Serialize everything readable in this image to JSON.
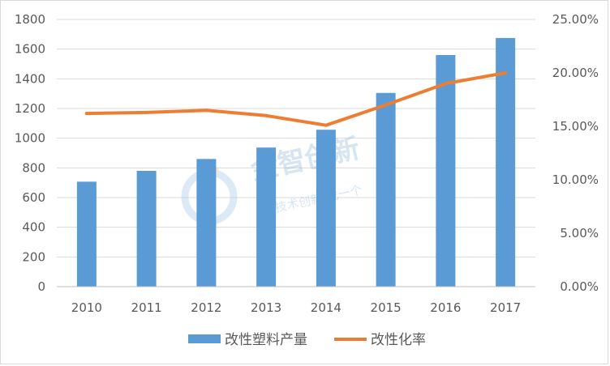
{
  "chart_data": {
    "type": "bar",
    "categories": [
      "2010",
      "2011",
      "2012",
      "2013",
      "2014",
      "2015",
      "2016",
      "2017"
    ],
    "series": [
      {
        "name": "改性塑料产量",
        "type": "bar",
        "axis": "left",
        "values": [
          707,
          780,
          860,
          937,
          1057,
          1305,
          1560,
          1675
        ]
      },
      {
        "name": "改性化率",
        "type": "line",
        "axis": "right",
        "values": [
          0.162,
          0.163,
          0.165,
          0.16,
          0.151,
          0.17,
          0.19,
          0.2
        ]
      }
    ],
    "y_left": {
      "min": 0,
      "max": 1800,
      "step": 200,
      "ticks": [
        "0",
        "200",
        "400",
        "600",
        "800",
        "1000",
        "1200",
        "1400",
        "1600",
        "1800"
      ]
    },
    "y_right": {
      "min": 0,
      "max": 0.25,
      "step": 0.05,
      "ticks": [
        "0.00%",
        "5.00%",
        "10.00%",
        "15.00%",
        "20.00%",
        "25.00%"
      ]
    },
    "grid": true,
    "legend_position": "bottom",
    "colors": {
      "bar": "#5b9bd5",
      "line": "#ed7d31",
      "grid": "#d9d9d9",
      "text": "#595959"
    }
  },
  "watermark": {
    "brand": "金智创新",
    "tagline": "技术创新 找一个"
  }
}
